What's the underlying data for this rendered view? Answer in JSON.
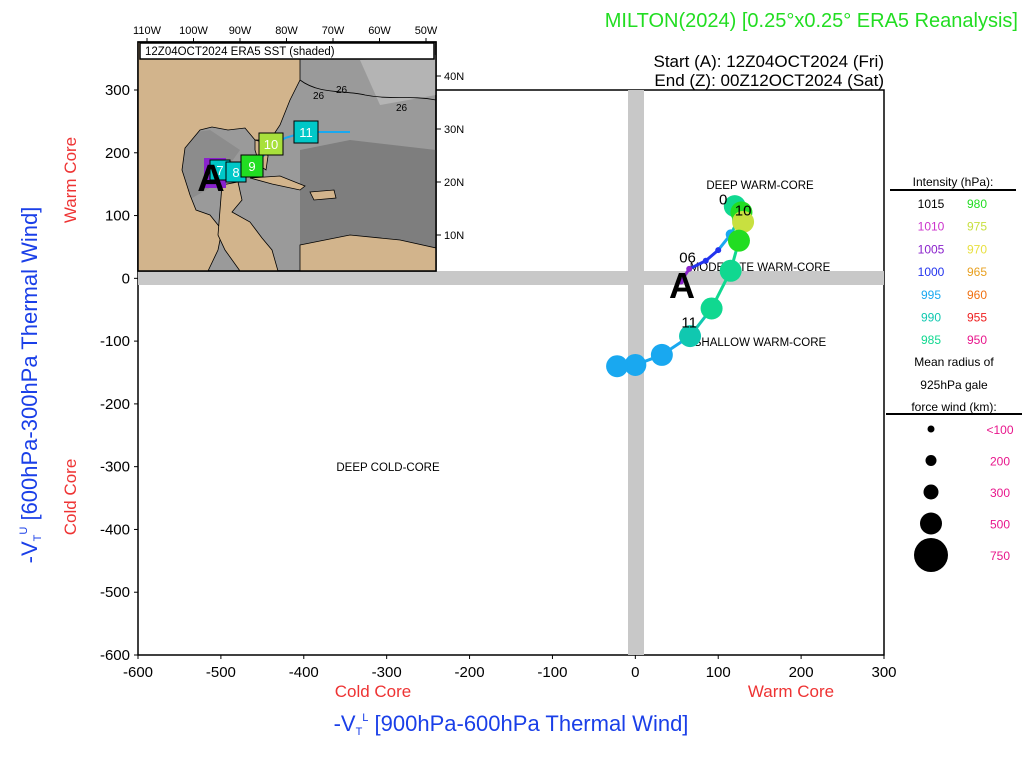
{
  "header": {
    "title": "MILTON(2024) [0.25°x0.25° ERA5 Reanalysis]",
    "start": "Start (A): 12Z04OCT2024 (Fri)",
    "end": "End (Z): 00Z12OCT2024 (Sat)"
  },
  "colors": {
    "title": "#22dd22",
    "axis_blue": "#1a3fe8",
    "axis_red": "#ee3333",
    "gray_band": "#c8c8c8",
    "legend_pink": "#e8168c"
  },
  "axes": {
    "xlabel": "-V_T^L [900hPa-600hPa Thermal Wind]",
    "ylabel": "-V_T^U [600hPa-300hPa Thermal Wind]",
    "x_cold": "Cold Core",
    "x_warm": "Warm Core",
    "y_cold": "Cold Core",
    "y_warm": "Warm Core",
    "xticks": [
      "-600",
      "-500",
      "-400",
      "-300",
      "-200",
      "-100",
      "0",
      "100",
      "200",
      "300"
    ],
    "yticks": [
      "300",
      "200",
      "100",
      "0",
      "-100",
      "-200",
      "-300",
      "-400",
      "-500",
      "-600"
    ]
  },
  "regions": {
    "deep_warm": "DEEP WARM-CORE",
    "moderate_warm": "MODERATE WARM-CORE",
    "shallow_warm": "SHALLOW WARM-CORE",
    "deep_cold": "DEEP COLD-CORE"
  },
  "inset": {
    "title": "12Z04OCT2024 ERA5 SST (shaded)",
    "lon_labels": [
      "110W",
      "100W",
      "90W",
      "80W",
      "70W",
      "60W",
      "50W"
    ],
    "lat_labels": [
      "40N",
      "30N",
      "20N",
      "10N"
    ],
    "contours": [
      "26",
      "26",
      "26"
    ],
    "start_marker": "A",
    "day_boxes": [
      {
        "label": "7",
        "color": "#00c8c8"
      },
      {
        "label": "8",
        "color": "#00c8c8"
      },
      {
        "label": "9",
        "color": "#22dd22"
      },
      {
        "label": "10",
        "color": "#a8e03c"
      },
      {
        "label": "11",
        "color": "#00c8c8"
      }
    ]
  },
  "legend": {
    "intensity_title": "Intensity (hPa):",
    "intensity": [
      {
        "left": "1015",
        "left_color": "#000000",
        "right": "980",
        "right_color": "#22dd22"
      },
      {
        "left": "1010",
        "left_color": "#cc33cc",
        "right": "975",
        "right_color": "#c8e040"
      },
      {
        "left": "1005",
        "left_color": "#8a22cc",
        "right": "970",
        "right_color": "#e8e040"
      },
      {
        "left": "1000",
        "left_color": "#2233ee",
        "right": "965",
        "right_color": "#e8a020"
      },
      {
        "left": "995",
        "left_color": "#19a8f0",
        "right": "960",
        "right_color": "#f07010"
      },
      {
        "left": "990",
        "left_color": "#10c8b0",
        "right": "955",
        "right_color": "#ee2020"
      },
      {
        "left": "985",
        "left_color": "#10d890",
        "right": "950",
        "right_color": "#e8168c"
      }
    ],
    "radius_title_1": "Mean radius of",
    "radius_title_2": "925hPa gale",
    "radius_title_3": "force wind (km):",
    "radius": [
      {
        "label": "<100",
        "size": 100
      },
      {
        "label": "200",
        "size": 200
      },
      {
        "label": "300",
        "size": 300
      },
      {
        "label": "500",
        "size": 500
      },
      {
        "label": "750",
        "size": 750
      }
    ]
  },
  "chart_data": {
    "type": "scatter",
    "title": "MILTON(2024) [0.25°x0.25° ERA5 Reanalysis]",
    "xlabel": "-V_T^L [900hPa-600hPa Thermal Wind]",
    "ylabel": "-V_T^U [600hPa-300hPa Thermal Wind]",
    "xlim": [
      -600,
      300
    ],
    "ylim": [
      -600,
      300
    ],
    "start_label": "A",
    "point_labels": [
      {
        "text": "06",
        "x": 63,
        "y": 25
      },
      {
        "text": "10",
        "x": 130,
        "y": 100
      },
      {
        "text": "11",
        "x": 65,
        "y": -78
      },
      {
        "text": "0",
        "x": 106,
        "y": 118
      }
    ],
    "track": [
      {
        "x": 55,
        "y": -5,
        "color": "#8a22cc",
        "radius_km": 100
      },
      {
        "x": 65,
        "y": 15,
        "color": "#8a22cc",
        "radius_km": 100
      },
      {
        "x": 85,
        "y": 28,
        "color": "#2233ee",
        "radius_km": 100
      },
      {
        "x": 100,
        "y": 45,
        "color": "#2233ee",
        "radius_km": 100
      },
      {
        "x": 115,
        "y": 70,
        "color": "#19a8f0",
        "radius_km": 200
      },
      {
        "x": 125,
        "y": 95,
        "color": "#10c8b0",
        "radius_km": 300
      },
      {
        "x": 120,
        "y": 115,
        "color": "#10d890",
        "radius_km": 500
      },
      {
        "x": 128,
        "y": 105,
        "color": "#22dd22",
        "radius_km": 500
      },
      {
        "x": 130,
        "y": 90,
        "color": "#c8e040",
        "radius_km": 500
      },
      {
        "x": 125,
        "y": 60,
        "color": "#22dd22",
        "radius_km": 500
      },
      {
        "x": 115,
        "y": 12,
        "color": "#10d890",
        "radius_km": 500
      },
      {
        "x": 92,
        "y": -48,
        "color": "#10d890",
        "radius_km": 500
      },
      {
        "x": 66,
        "y": -92,
        "color": "#10c8b0",
        "radius_km": 500
      },
      {
        "x": 32,
        "y": -122,
        "color": "#19a8f0",
        "radius_km": 500
      },
      {
        "x": 0,
        "y": -138,
        "color": "#19a8f0",
        "radius_km": 500
      },
      {
        "x": -22,
        "y": -140,
        "color": "#19a8f0",
        "radius_km": 500
      }
    ]
  }
}
